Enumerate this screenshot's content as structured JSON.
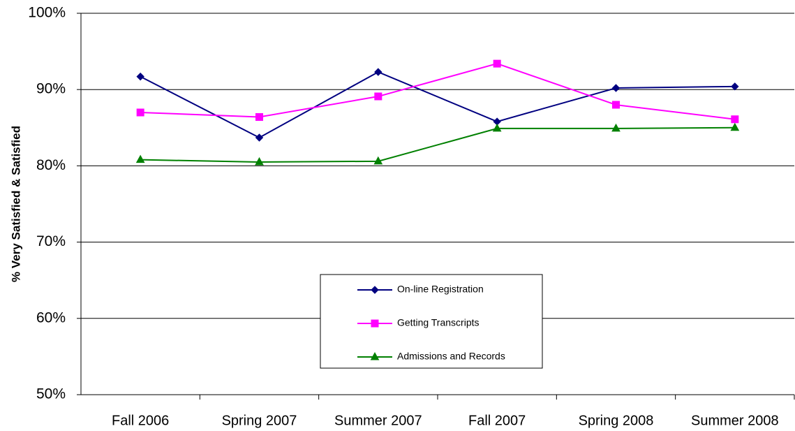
{
  "chart_data": {
    "type": "line",
    "ylabel": "% Very Satisfied & Satisfied",
    "categories": [
      "Fall 2006",
      "Spring 2007",
      "Summer 2007",
      "Fall 2007",
      "Spring 2008",
      "Summer 2008"
    ],
    "series": [
      {
        "name": "On-line Registration",
        "color": "#000080",
        "marker": "diamond",
        "values": [
          91.7,
          83.7,
          92.3,
          85.8,
          90.2,
          90.4
        ]
      },
      {
        "name": "Getting Transcripts",
        "color": "#ff00ff",
        "marker": "square",
        "values": [
          87.0,
          86.4,
          89.1,
          93.4,
          88.0,
          86.1
        ]
      },
      {
        "name": "Admissions and Records",
        "color": "#008000",
        "marker": "triangle",
        "values": [
          80.8,
          80.5,
          80.6,
          84.9,
          84.9,
          85.0
        ]
      }
    ],
    "ylim": [
      50,
      100
    ],
    "yticks": [
      {
        "value": 50,
        "label": "50%"
      },
      {
        "value": 60,
        "label": "60%"
      },
      {
        "value": 70,
        "label": "70%"
      },
      {
        "value": 80,
        "label": "80%"
      },
      {
        "value": 90,
        "label": "90%"
      },
      {
        "value": 100,
        "label": "100%"
      }
    ],
    "grid": true,
    "legend": "bottom-center"
  }
}
